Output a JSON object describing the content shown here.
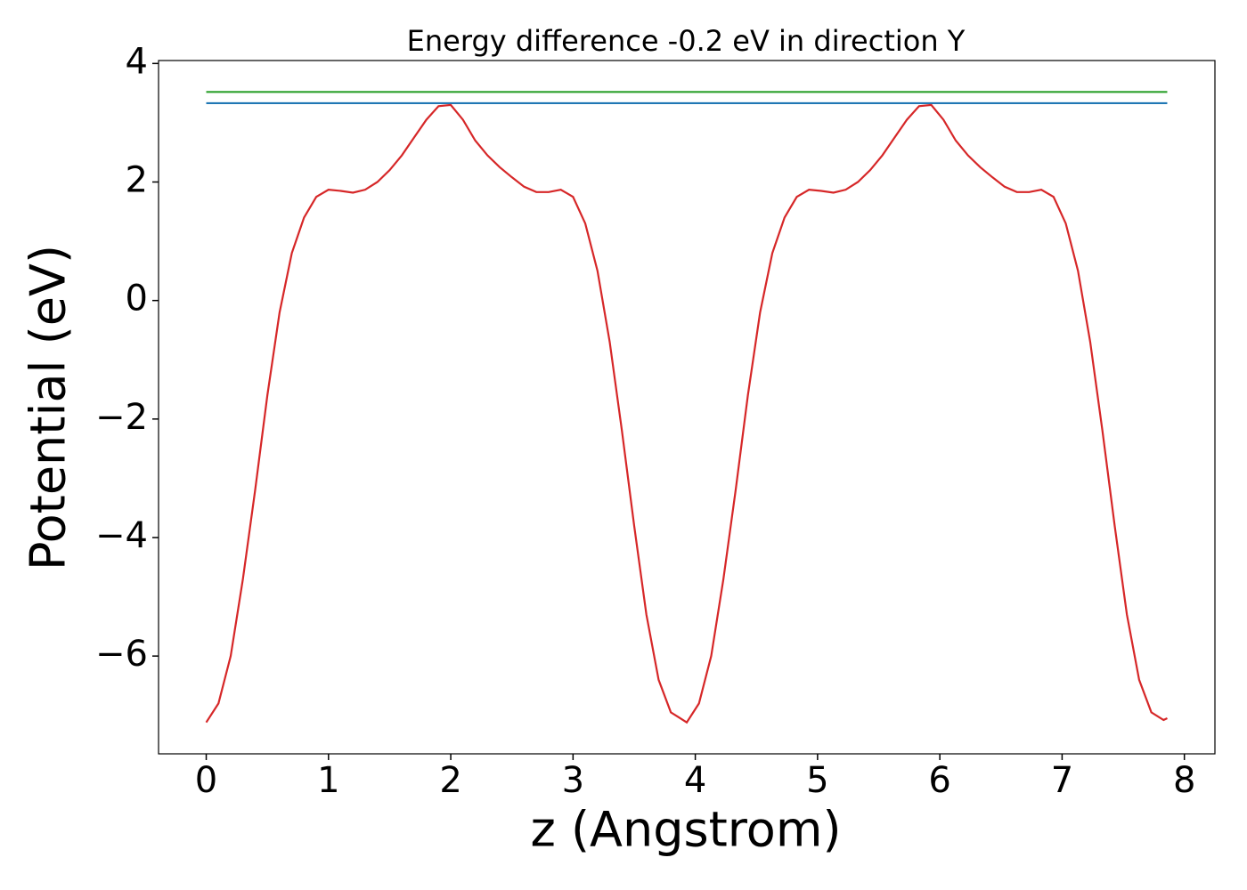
{
  "chart_data": {
    "type": "line",
    "title": "Energy difference -0.2 eV in direction Y",
    "xlabel": "z (Angstrom)",
    "ylabel": "Potential (eV)",
    "xlim": [
      -0.39,
      8.25
    ],
    "ylim": [
      -7.65,
      4.05
    ],
    "xticks": [
      0,
      1,
      2,
      3,
      4,
      5,
      6,
      7,
      8
    ],
    "yticks": [
      {
        "value": -6,
        "label": "−6"
      },
      {
        "value": -4,
        "label": "−4"
      },
      {
        "value": -2,
        "label": "−2"
      },
      0,
      2,
      4
    ],
    "grid": false,
    "series": [
      {
        "color": "#2ca02c",
        "x": [
          0,
          7.86
        ],
        "values": [
          3.52,
          3.52
        ]
      },
      {
        "color": "#1f77b4",
        "x": [
          0,
          7.86
        ],
        "values": [
          3.33,
          3.33
        ]
      },
      {
        "color": "#d62728",
        "x": [
          0,
          0.1,
          0.2,
          0.3,
          0.4,
          0.5,
          0.6,
          0.7,
          0.8,
          0.9,
          1.0,
          1.1,
          1.2,
          1.3,
          1.4,
          1.5,
          1.6,
          1.7,
          1.8,
          1.9,
          2.0,
          2.1,
          2.2,
          2.3,
          2.4,
          2.5,
          2.6,
          2.7,
          2.8,
          2.9,
          3.0,
          3.1,
          3.2,
          3.3,
          3.4,
          3.5,
          3.6,
          3.7,
          3.8,
          3.9,
          3.93,
          4.03,
          4.13,
          4.23,
          4.33,
          4.43,
          4.53,
          4.63,
          4.73,
          4.83,
          4.93,
          5.03,
          5.13,
          5.23,
          5.33,
          5.43,
          5.53,
          5.63,
          5.73,
          5.83,
          5.93,
          6.03,
          6.13,
          6.23,
          6.33,
          6.43,
          6.53,
          6.63,
          6.73,
          6.83,
          6.93,
          7.03,
          7.13,
          7.23,
          7.33,
          7.43,
          7.53,
          7.63,
          7.73,
          7.83,
          7.86
        ],
        "values": [
          -7.12,
          -6.8,
          -6.0,
          -4.7,
          -3.2,
          -1.6,
          -0.2,
          0.8,
          1.4,
          1.75,
          1.87,
          1.85,
          1.82,
          1.87,
          2.0,
          2.2,
          2.45,
          2.75,
          3.05,
          3.28,
          3.3,
          3.05,
          2.7,
          2.45,
          2.25,
          2.08,
          1.92,
          1.83,
          1.83,
          1.87,
          1.75,
          1.3,
          0.5,
          -0.7,
          -2.2,
          -3.8,
          -5.3,
          -6.4,
          -6.95,
          -7.08,
          -7.12,
          -6.8,
          -6.0,
          -4.7,
          -3.2,
          -1.6,
          -0.2,
          0.8,
          1.4,
          1.75,
          1.87,
          1.85,
          1.82,
          1.87,
          2.0,
          2.2,
          2.45,
          2.75,
          3.05,
          3.28,
          3.3,
          3.05,
          2.7,
          2.45,
          2.25,
          2.08,
          1.92,
          1.83,
          1.83,
          1.87,
          1.75,
          1.3,
          0.5,
          -0.7,
          -2.2,
          -3.8,
          -5.3,
          -6.4,
          -6.95,
          -7.08,
          -7.05
        ]
      }
    ]
  }
}
